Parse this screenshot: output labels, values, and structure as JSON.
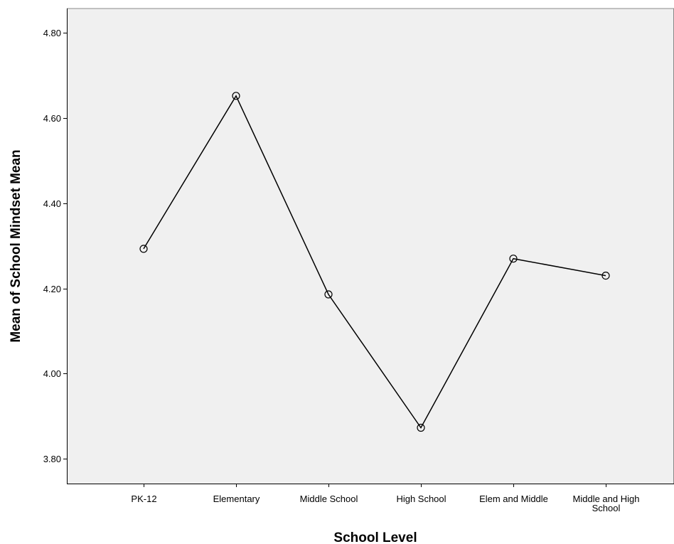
{
  "chart_data": {
    "type": "line",
    "title": "",
    "xlabel": "School Level",
    "ylabel": "Mean of School Mindset Mean",
    "categories": [
      "PK-12",
      "Elementary",
      "Middle School",
      "High School",
      "Elem and Middle",
      "Middle and High School"
    ],
    "category_label_lines": [
      [
        "PK-12"
      ],
      [
        "Elementary"
      ],
      [
        "Middle School"
      ],
      [
        "High School"
      ],
      [
        "Elem and Middle"
      ],
      [
        "Middle and High",
        "School"
      ]
    ],
    "values": [
      4.293,
      4.652,
      4.186,
      3.873,
      4.27,
      4.23
    ],
    "ylim": [
      3.742,
      4.857
    ],
    "y_ticks": [
      3.8,
      4.0,
      4.2,
      4.4,
      4.6,
      4.8
    ],
    "y_tick_labels": [
      "3.80",
      "4.00",
      "4.20",
      "4.40",
      "4.60",
      "4.80"
    ],
    "grid": false,
    "legend": "none",
    "marker": "open-circle",
    "colors": {
      "plot_background": "#f0f0f0",
      "line": "#000000",
      "axis": "#000000",
      "frame": "#888888"
    }
  }
}
